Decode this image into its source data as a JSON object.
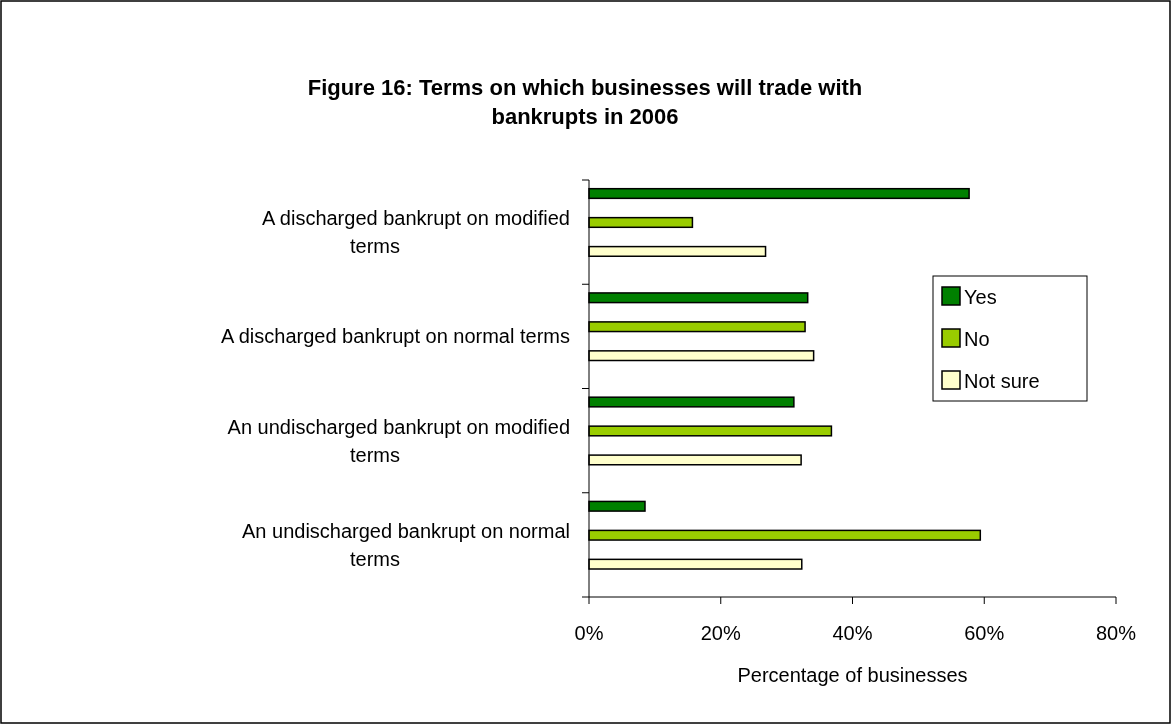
{
  "chart_data": {
    "type": "bar",
    "orientation": "horizontal",
    "title": "Figure 16: Terms on which businesses will trade with bankrupts in 2006",
    "xlabel": "Percentage of businesses",
    "categories": [
      "A discharged bankrupt on modified terms",
      "A discharged bankrupt on normal terms",
      "An undischarged bankrupt on modified terms",
      "An undischarged bankrupt on normal terms"
    ],
    "series": [
      {
        "name": "Yes",
        "color": "#008000",
        "values": [
          57.7,
          33.2,
          31.1,
          8.5
        ]
      },
      {
        "name": "No",
        "color": "#99cc00",
        "values": [
          15.7,
          32.8,
          36.8,
          59.4
        ]
      },
      {
        "name": "Not sure",
        "color": "#ffffcc",
        "values": [
          26.8,
          34.1,
          32.2,
          32.3
        ]
      }
    ],
    "xlim": [
      0,
      80
    ],
    "xticks": [
      {
        "value": 0,
        "label": "0%"
      },
      {
        "value": 20,
        "label": "20%"
      },
      {
        "value": 40,
        "label": "40%"
      },
      {
        "value": 60,
        "label": "60%"
      },
      {
        "value": 80,
        "label": "80%"
      }
    ],
    "grid": false,
    "legend": "right"
  }
}
